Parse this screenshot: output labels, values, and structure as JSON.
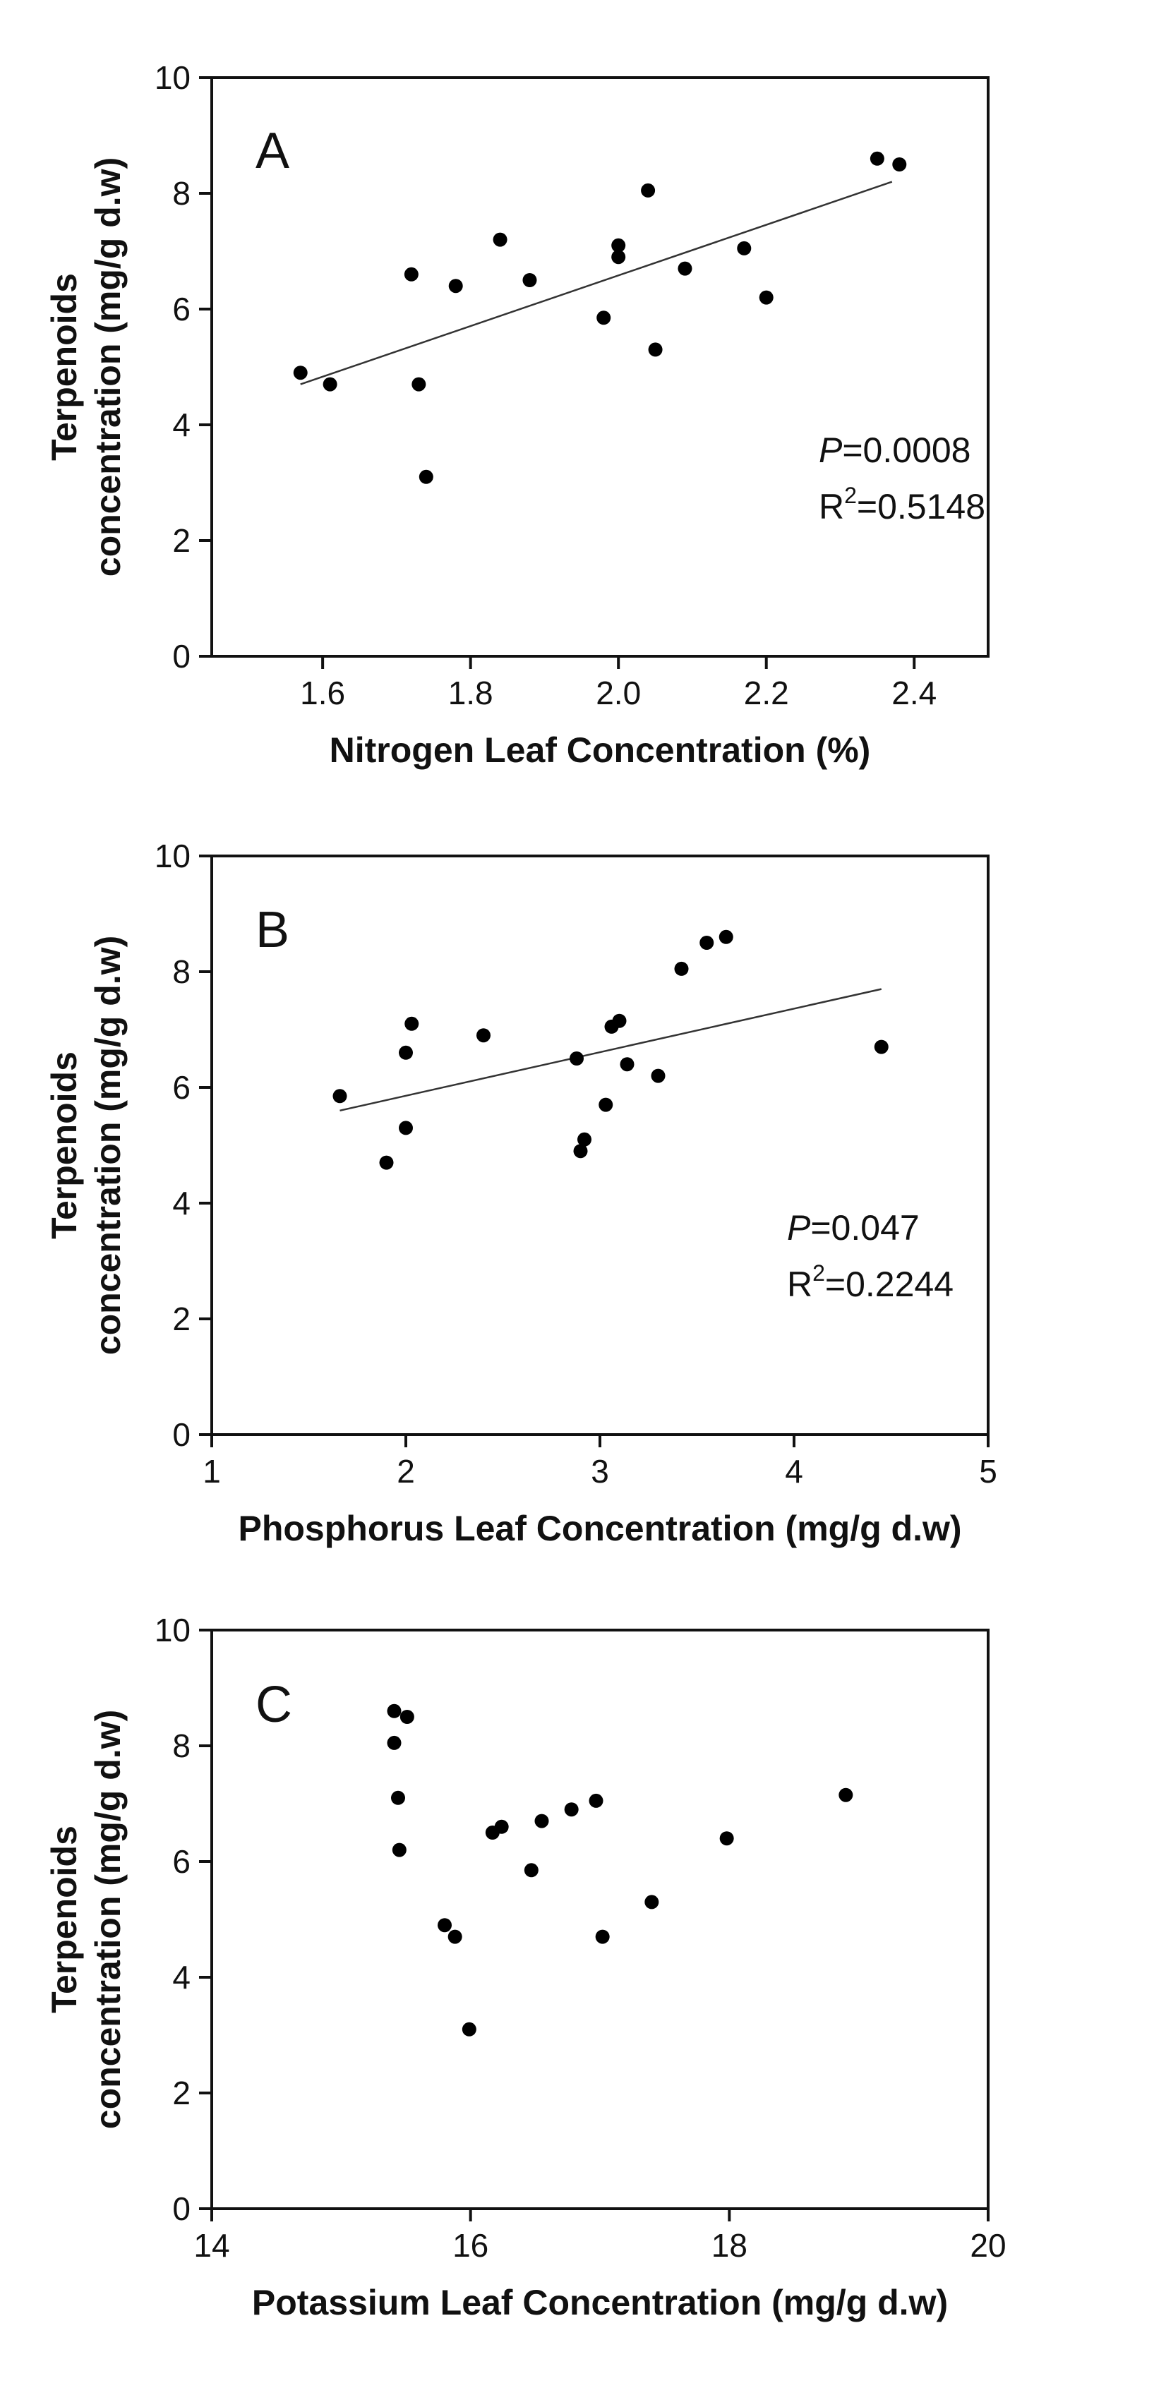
{
  "chart_data": [
    {
      "type": "scatter",
      "panel_label": "A",
      "xlabel": "Nitrogen Leaf Concentration (%)",
      "ylabel_line1": "Terpenoids",
      "ylabel_line2": "concentration (mg/g d.w)",
      "xlim": [
        1.45,
        2.5
      ],
      "ylim": [
        0,
        10
      ],
      "xticks": [
        1.6,
        1.8,
        2.0,
        2.2,
        2.4
      ],
      "xtick_labels": [
        "1.6",
        "1.8",
        "2.0",
        "2.2",
        "2.4"
      ],
      "yticks": [
        0,
        2,
        4,
        6,
        8,
        10
      ],
      "ytick_labels": [
        "0",
        "2",
        "4",
        "6",
        "8",
        "10"
      ],
      "stats": {
        "p_symbol": "P",
        "p_text": "=0.0008",
        "r2_base": "R",
        "r2_sup": "2",
        "r2_text": "=0.5148"
      },
      "points": [
        {
          "x": 1.57,
          "y": 4.9
        },
        {
          "x": 1.61,
          "y": 4.7
        },
        {
          "x": 1.72,
          "y": 6.6
        },
        {
          "x": 1.73,
          "y": 4.7
        },
        {
          "x": 1.74,
          "y": 3.1
        },
        {
          "x": 1.78,
          "y": 6.4
        },
        {
          "x": 1.84,
          "y": 7.2
        },
        {
          "x": 1.88,
          "y": 6.5
        },
        {
          "x": 1.98,
          "y": 5.85
        },
        {
          "x": 2.0,
          "y": 6.9
        },
        {
          "x": 2.0,
          "y": 7.1
        },
        {
          "x": 2.04,
          "y": 8.05
        },
        {
          "x": 2.05,
          "y": 5.3
        },
        {
          "x": 2.09,
          "y": 6.7
        },
        {
          "x": 2.17,
          "y": 7.05
        },
        {
          "x": 2.2,
          "y": 6.2
        },
        {
          "x": 2.35,
          "y": 8.6
        },
        {
          "x": 2.38,
          "y": 8.5
        }
      ],
      "fit_line": {
        "x": [
          1.57,
          2.37
        ],
        "y": [
          4.7,
          8.2
        ]
      }
    },
    {
      "type": "scatter",
      "panel_label": "B",
      "xlabel": "Phosphorus Leaf Concentration (mg/g d.w)",
      "ylabel_line1": "Terpenoids",
      "ylabel_line2": "concentration (mg/g d.w)",
      "xlim": [
        1,
        5
      ],
      "ylim": [
        0,
        10
      ],
      "xticks": [
        1,
        2,
        3,
        4,
        5
      ],
      "xtick_labels": [
        "1",
        "2",
        "3",
        "4",
        "5"
      ],
      "yticks": [
        0,
        2,
        4,
        6,
        8,
        10
      ],
      "ytick_labels": [
        "0",
        "2",
        "4",
        "6",
        "8",
        "10"
      ],
      "stats": {
        "p_symbol": "P",
        "p_text": "=0.047",
        "r2_base": "R",
        "r2_sup": "2",
        "r2_text": "=0.2244"
      },
      "points": [
        {
          "x": 1.66,
          "y": 5.85
        },
        {
          "x": 1.9,
          "y": 4.7
        },
        {
          "x": 2.0,
          "y": 6.6
        },
        {
          "x": 2.0,
          "y": 5.3
        },
        {
          "x": 2.03,
          "y": 7.1
        },
        {
          "x": 2.4,
          "y": 6.9
        },
        {
          "x": 2.88,
          "y": 6.5
        },
        {
          "x": 2.9,
          "y": 4.9
        },
        {
          "x": 2.92,
          "y": 5.1
        },
        {
          "x": 3.03,
          "y": 5.7
        },
        {
          "x": 3.06,
          "y": 7.05
        },
        {
          "x": 3.1,
          "y": 7.15
        },
        {
          "x": 3.14,
          "y": 6.4
        },
        {
          "x": 3.3,
          "y": 6.2
        },
        {
          "x": 3.42,
          "y": 8.05
        },
        {
          "x": 3.55,
          "y": 8.5
        },
        {
          "x": 3.65,
          "y": 8.6
        },
        {
          "x": 4.45,
          "y": 6.7
        }
      ],
      "fit_line": {
        "x": [
          1.66,
          4.45
        ],
        "y": [
          5.6,
          7.7
        ]
      }
    },
    {
      "type": "scatter",
      "panel_label": "C",
      "xlabel": "Potassium Leaf Concentration (mg/g d.w)",
      "ylabel_line1": "Terpenoids",
      "ylabel_line2": "concentration (mg/g d.w)",
      "xlim": [
        14,
        20
      ],
      "ylim": [
        0,
        10
      ],
      "xticks": [
        14,
        16,
        18,
        20
      ],
      "xtick_labels": [
        "14",
        "16",
        "18",
        "20"
      ],
      "yticks": [
        0,
        2,
        4,
        6,
        8,
        10
      ],
      "ytick_labels": [
        "0",
        "2",
        "4",
        "6",
        "8",
        "10"
      ],
      "points": [
        {
          "x": 15.41,
          "y": 8.6
        },
        {
          "x": 15.41,
          "y": 8.05
        },
        {
          "x": 15.44,
          "y": 7.1
        },
        {
          "x": 15.45,
          "y": 6.2
        },
        {
          "x": 15.51,
          "y": 8.5
        },
        {
          "x": 15.8,
          "y": 4.9
        },
        {
          "x": 15.88,
          "y": 4.7
        },
        {
          "x": 15.99,
          "y": 3.1
        },
        {
          "x": 16.17,
          "y": 6.5
        },
        {
          "x": 16.24,
          "y": 6.6
        },
        {
          "x": 16.47,
          "y": 5.85
        },
        {
          "x": 16.55,
          "y": 6.7
        },
        {
          "x": 16.78,
          "y": 6.9
        },
        {
          "x": 16.97,
          "y": 7.05
        },
        {
          "x": 17.02,
          "y": 4.7
        },
        {
          "x": 17.4,
          "y": 5.3
        },
        {
          "x": 17.98,
          "y": 6.4
        },
        {
          "x": 18.9,
          "y": 7.15
        }
      ]
    }
  ]
}
